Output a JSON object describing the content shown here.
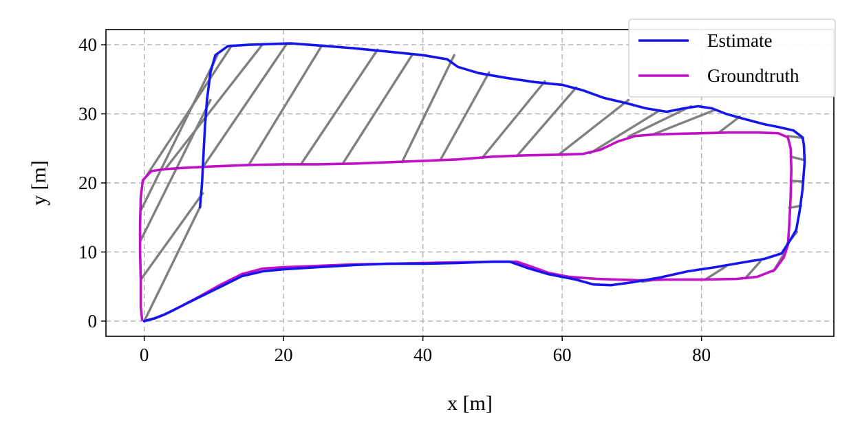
{
  "chart_data": {
    "type": "line",
    "xlabel": "x [m]",
    "ylabel": "y [m]",
    "xlim": [
      -5.5,
      99
    ],
    "ylim": [
      -2.2,
      42.2
    ],
    "xticks": [
      0,
      20,
      40,
      60,
      80
    ],
    "yticks": [
      0,
      10,
      20,
      30,
      40
    ],
    "grid": true,
    "legend_position": "top-right",
    "series": [
      {
        "name": "Estimate",
        "color": "#1515f0",
        "points": [
          [
            0,
            0
          ],
          [
            1.5,
            0.4
          ],
          [
            3,
            1
          ],
          [
            5,
            2
          ],
          [
            8,
            3.5
          ],
          [
            11,
            5
          ],
          [
            14,
            6.5
          ],
          [
            17,
            7.2
          ],
          [
            20,
            7.5
          ],
          [
            25,
            7.8
          ],
          [
            30,
            8.1
          ],
          [
            35,
            8.3
          ],
          [
            40,
            8.3
          ],
          [
            45,
            8.4
          ],
          [
            50,
            8.6
          ],
          [
            52.5,
            8.6
          ],
          [
            55,
            7.7
          ],
          [
            58,
            6.8
          ],
          [
            62,
            6
          ],
          [
            64.5,
            5.3
          ],
          [
            67,
            5.2
          ],
          [
            70,
            5.6
          ],
          [
            74,
            6.3
          ],
          [
            78,
            7.2
          ],
          [
            82,
            7.8
          ],
          [
            86,
            8.5
          ],
          [
            89,
            9
          ],
          [
            91.5,
            9.8
          ],
          [
            92.6,
            11.5
          ],
          [
            93.6,
            13.2
          ],
          [
            94.1,
            16
          ],
          [
            94.5,
            19
          ],
          [
            94.8,
            23
          ],
          [
            94.7,
            25.5
          ],
          [
            94.5,
            26.6
          ],
          [
            93.2,
            27.6
          ],
          [
            91,
            28.1
          ],
          [
            89,
            28.5
          ],
          [
            86,
            29.3
          ],
          [
            83.5,
            30
          ],
          [
            81.5,
            30.8
          ],
          [
            79.5,
            31.1
          ],
          [
            77.5,
            30.8
          ],
          [
            75,
            30.3
          ],
          [
            72,
            30.8
          ],
          [
            69,
            31.6
          ],
          [
            66,
            32.3
          ],
          [
            63,
            33.4
          ],
          [
            60,
            34.2
          ],
          [
            56,
            34.6
          ],
          [
            52,
            35.2
          ],
          [
            48,
            35.9
          ],
          [
            45,
            36.8
          ],
          [
            43.5,
            37.9
          ],
          [
            40,
            38.5
          ],
          [
            35,
            39
          ],
          [
            30,
            39.5
          ],
          [
            25,
            39.9
          ],
          [
            21,
            40.2
          ],
          [
            18,
            40.1
          ],
          [
            15,
            40
          ],
          [
            12,
            39.8
          ],
          [
            10.2,
            38.5
          ],
          [
            9.5,
            36
          ],
          [
            9,
            32
          ],
          [
            8.7,
            28
          ],
          [
            8.5,
            24
          ],
          [
            8.3,
            20
          ],
          [
            8,
            16.5
          ]
        ]
      },
      {
        "name": "Groundtruth",
        "color": "#c010c8",
        "points": [
          [
            -0.3,
            0.2
          ],
          [
            -0.5,
            2
          ],
          [
            -0.5,
            6
          ],
          [
            -0.6,
            10
          ],
          [
            -0.6,
            14
          ],
          [
            -0.5,
            18
          ],
          [
            -0.2,
            20.4
          ],
          [
            1,
            21.7
          ],
          [
            3,
            22
          ],
          [
            6,
            22.2
          ],
          [
            10,
            22.4
          ],
          [
            15,
            22.6
          ],
          [
            20,
            22.7
          ],
          [
            25,
            22.7
          ],
          [
            30,
            22.8
          ],
          [
            35,
            23
          ],
          [
            40,
            23.2
          ],
          [
            45,
            23.4
          ],
          [
            50,
            23.8
          ],
          [
            55,
            24
          ],
          [
            60,
            24.1
          ],
          [
            63,
            24.2
          ],
          [
            65.5,
            24.8
          ],
          [
            68,
            26
          ],
          [
            70.5,
            26.8
          ],
          [
            73,
            27
          ],
          [
            76,
            27.1
          ],
          [
            80,
            27.2
          ],
          [
            84,
            27.3
          ],
          [
            88,
            27.3
          ],
          [
            91,
            27.2
          ],
          [
            92.4,
            26.6
          ],
          [
            92.8,
            25
          ],
          [
            92.9,
            22
          ],
          [
            92.8,
            18
          ],
          [
            92.6,
            14
          ],
          [
            92.4,
            11
          ],
          [
            91.8,
            9.2
          ],
          [
            90.5,
            7.4
          ],
          [
            88,
            6.4
          ],
          [
            85,
            6.1
          ],
          [
            80,
            6
          ],
          [
            75,
            6
          ],
          [
            71,
            5.9
          ],
          [
            68,
            6
          ],
          [
            65,
            6.1
          ],
          [
            61,
            6.4
          ],
          [
            58,
            7
          ],
          [
            55.5,
            7.9
          ],
          [
            53.5,
            8.6
          ],
          [
            50,
            8.6
          ],
          [
            45,
            8.5
          ],
          [
            40,
            8.4
          ],
          [
            35,
            8.3
          ],
          [
            30,
            8.2
          ],
          [
            25,
            8
          ],
          [
            20,
            7.8
          ],
          [
            17,
            7.6
          ],
          [
            14,
            6.8
          ],
          [
            11,
            5.3
          ],
          [
            8,
            3.6
          ],
          [
            5,
            2
          ],
          [
            3,
            1
          ],
          [
            1.5,
            0.4
          ],
          [
            0,
            0
          ]
        ]
      }
    ],
    "error_segments": [
      [
        [
          0,
          0
        ],
        [
          8,
          16.5
        ]
      ],
      [
        [
          -0.5,
          6
        ],
        [
          8.4,
          18.5
        ]
      ],
      [
        [
          -0.6,
          11.5
        ],
        [
          9.5,
          32
        ]
      ],
      [
        [
          -0.5,
          16
        ],
        [
          10.5,
          38.5
        ]
      ],
      [
        [
          0.3,
          21
        ],
        [
          12.5,
          39.8
        ]
      ],
      [
        [
          3,
          22
        ],
        [
          17,
          40.1
        ]
      ],
      [
        [
          8.5,
          22.4
        ],
        [
          20.5,
          40.2
        ]
      ],
      [
        [
          15,
          22.6
        ],
        [
          25.5,
          39.9
        ]
      ],
      [
        [
          22.5,
          22.7
        ],
        [
          33.5,
          39.3
        ]
      ],
      [
        [
          28.5,
          22.8
        ],
        [
          38.5,
          38.6
        ]
      ],
      [
        [
          37,
          23
        ],
        [
          44.5,
          38.5
        ]
      ],
      [
        [
          42.5,
          23.3
        ],
        [
          49.5,
          36
        ]
      ],
      [
        [
          48.5,
          23.6
        ],
        [
          57.5,
          34.7
        ]
      ],
      [
        [
          53.5,
          23.9
        ],
        [
          62,
          33.8
        ]
      ],
      [
        [
          59.5,
          24.1
        ],
        [
          69.5,
          32
        ]
      ],
      [
        [
          64,
          24.3
        ],
        [
          74,
          30.5
        ]
      ],
      [
        [
          69.5,
          26.7
        ],
        [
          78.5,
          31.1
        ]
      ],
      [
        [
          73,
          27
        ],
        [
          82,
          30.6
        ]
      ],
      [
        [
          82.5,
          27.3
        ],
        [
          85.5,
          29.6
        ]
      ],
      [
        [
          92.4,
          26.8
        ],
        [
          94.6,
          26.5
        ]
      ],
      [
        [
          92.8,
          23.8
        ],
        [
          94.8,
          23.3
        ]
      ],
      [
        [
          92.8,
          20.3
        ],
        [
          94.6,
          20.2
        ]
      ],
      [
        [
          92.6,
          16.4
        ],
        [
          94.3,
          16.7
        ]
      ],
      [
        [
          92.3,
          11.2
        ],
        [
          93.7,
          12.9
        ]
      ],
      [
        [
          90.3,
          7.2
        ],
        [
          92,
          10
        ]
      ],
      [
        [
          86.3,
          6.2
        ],
        [
          88.5,
          8.7
        ]
      ],
      [
        [
          80.5,
          6
        ],
        [
          83.5,
          7.9
        ]
      ],
      [
        [
          73.5,
          6
        ],
        [
          71.5,
          5.7
        ]
      ],
      [
        [
          62.5,
          6.2
        ],
        [
          58.5,
          6.7
        ]
      ]
    ]
  }
}
